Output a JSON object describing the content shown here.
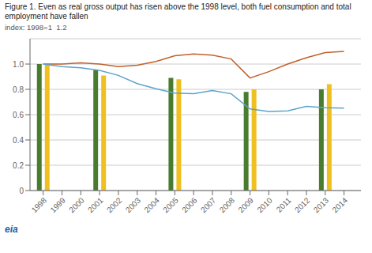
{
  "chart_data": {
    "type": "line",
    "title": "Figure 1.  Even as real gross output has risen above the 1998 level, both fuel consumption and total\nemployment have fallen",
    "subtitle": "index: 1998=1  1.2",
    "annotations": [
      {
        "text": "eia",
        "color": "#1a5fa8"
      }
    ],
    "series": [
      {
        "type": "bar",
        "color": "#4a7c2f",
        "x": [
          1998,
          2001,
          2005,
          2009,
          2013
        ],
        "values": [
          1.0,
          0.95,
          0.89,
          0.78,
          0.8
        ]
      },
      {
        "type": "bar",
        "color": "#f0c020",
        "x": [
          1998,
          2001,
          2005,
          2009,
          2013
        ],
        "values": [
          1.0,
          0.91,
          0.88,
          0.8,
          0.84
        ]
      },
      {
        "type": "line",
        "color": "#c0612b",
        "x": [
          1998,
          1999,
          2000,
          2001,
          2002,
          2003,
          2004,
          2005,
          2006,
          2007,
          2008,
          2009,
          2010,
          2011,
          2012,
          2013,
          2014
        ],
        "values": [
          1.0,
          1.0,
          1.01,
          1.0,
          0.98,
          0.99,
          1.02,
          1.065,
          1.08,
          1.07,
          1.04,
          0.89,
          0.94,
          1.0,
          1.05,
          1.09,
          1.1
        ]
      },
      {
        "type": "line",
        "color": "#5ba3c9",
        "x": [
          1998,
          1999,
          2000,
          2001,
          2002,
          2003,
          2004,
          2005,
          2006,
          2007,
          2008,
          2009,
          2010,
          2011,
          2012,
          2013,
          2014
        ],
        "values": [
          1.0,
          0.98,
          0.97,
          0.95,
          0.91,
          0.845,
          0.805,
          0.77,
          0.765,
          0.79,
          0.765,
          0.645,
          0.625,
          0.63,
          0.665,
          0.655,
          0.652
        ]
      }
    ],
    "xlim": [
      1997.3,
      2014.9
    ],
    "xticks": [
      1998,
      1999,
      2000,
      2001,
      2002,
      2003,
      2004,
      2005,
      2006,
      2007,
      2008,
      2009,
      2010,
      2011,
      2012,
      2013,
      2014
    ],
    "ylim": [
      0,
      1.2
    ],
    "yticks": [
      0,
      0.2,
      0.4,
      0.6,
      0.8,
      {
        "value": 1.0,
        "label": "1.0"
      }
    ],
    "grid": true
  }
}
